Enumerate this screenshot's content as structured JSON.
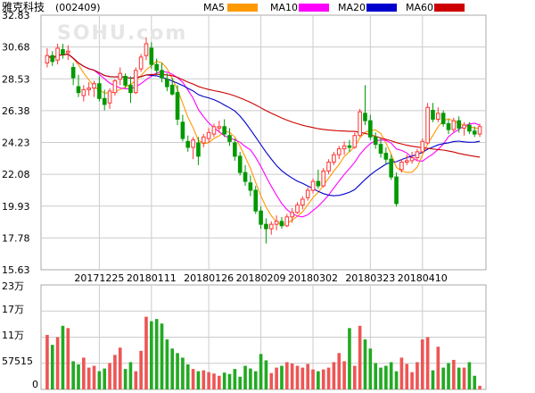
{
  "stock": {
    "name": "雅克科技",
    "code": "(002409)"
  },
  "watermark": "SOHU.com",
  "ma_legend": [
    {
      "label": "MA5",
      "color": "#ff9900"
    },
    {
      "label": "MA10",
      "color": "#ff00ff"
    },
    {
      "label": "MA20",
      "color": "#0000cc"
    },
    {
      "label": "MA60",
      "color": "#cc0000"
    }
  ],
  "colors": {
    "up": "#ff3333",
    "down": "#009900",
    "upVolume": "#ee5555",
    "downVolume": "#22aa22",
    "grid": "#cccccc",
    "axisText": "#000000"
  },
  "chart_data": {
    "type": "candlestick",
    "price_axis": {
      "ticks": [
        "32.83",
        "30.68",
        "28.53",
        "26.38",
        "24.23",
        "22.08",
        "19.93",
        "17.78",
        "15.63"
      ],
      "min": 15.63,
      "max": 32.83
    },
    "date_labels": [
      "20171225",
      "20180111",
      "20180126",
      "20180209",
      "20180302",
      "20180323",
      "20180410"
    ],
    "volume_axis": {
      "ticks": [
        "23万",
        "17万",
        "11万",
        "57515",
        "0"
      ],
      "max": 230000
    },
    "candles": [
      [
        29.6,
        30.6,
        29.3,
        30.1
      ],
      [
        30.1,
        30.4,
        29.4,
        29.7
      ],
      [
        29.8,
        30.9,
        29.5,
        30.6
      ],
      [
        30.5,
        30.9,
        29.9,
        30.2
      ],
      [
        30.3,
        30.8,
        29.8,
        30.4
      ],
      [
        29.3,
        29.6,
        28.1,
        28.6
      ],
      [
        28.0,
        28.8,
        27.3,
        27.6
      ],
      [
        27.4,
        28.1,
        27.0,
        27.8
      ],
      [
        27.8,
        28.3,
        27.4,
        27.9
      ],
      [
        27.9,
        28.4,
        27.3,
        28.2
      ],
      [
        28.2,
        28.7,
        27.0,
        27.2
      ],
      [
        27.2,
        27.8,
        26.4,
        26.8
      ],
      [
        26.9,
        27.9,
        26.5,
        27.7
      ],
      [
        27.6,
        28.5,
        27.4,
        28.4
      ],
      [
        28.5,
        29.3,
        28.1,
        28.9
      ],
      [
        28.7,
        28.9,
        27.9,
        28.1
      ],
      [
        28.1,
        28.7,
        26.9,
        27.6
      ],
      [
        27.6,
        29.3,
        27.5,
        29.1
      ],
      [
        29.2,
        30.2,
        29.0,
        30.0
      ],
      [
        30.1,
        31.3,
        29.8,
        30.9
      ],
      [
        30.6,
        31.0,
        29.2,
        29.5
      ],
      [
        29.5,
        29.9,
        28.8,
        29.1
      ],
      [
        29.1,
        29.6,
        28.3,
        28.6
      ],
      [
        28.5,
        28.9,
        27.7,
        28.0
      ],
      [
        28.1,
        28.6,
        27.4,
        27.5
      ],
      [
        27.6,
        28.1,
        25.4,
        25.8
      ],
      [
        25.6,
        26.1,
        24.3,
        24.5
      ],
      [
        24.3,
        24.7,
        23.6,
        23.9
      ],
      [
        23.9,
        24.6,
        23.1,
        24.4
      ],
      [
        24.2,
        24.6,
        22.7,
        23.3
      ],
      [
        24.2,
        24.8,
        23.9,
        24.6
      ],
      [
        24.5,
        25.2,
        24.2,
        24.9
      ],
      [
        24.8,
        25.5,
        24.6,
        25.3
      ],
      [
        25.2,
        25.7,
        24.9,
        25.3
      ],
      [
        25.3,
        25.8,
        24.6,
        24.8
      ],
      [
        24.7,
        25.2,
        24.0,
        24.3
      ],
      [
        24.2,
        24.5,
        23.0,
        23.3
      ],
      [
        23.3,
        23.6,
        22.0,
        22.2
      ],
      [
        22.2,
        22.7,
        21.3,
        21.6
      ],
      [
        21.5,
        22.0,
        20.6,
        21.0
      ],
      [
        21.0,
        21.3,
        19.4,
        19.6
      ],
      [
        19.6,
        19.9,
        18.4,
        18.7
      ],
      [
        18.7,
        19.1,
        17.4,
        18.4
      ],
      [
        18.4,
        18.9,
        18.0,
        18.7
      ],
      [
        18.7,
        19.3,
        18.3,
        18.9
      ],
      [
        18.9,
        19.2,
        18.4,
        18.6
      ],
      [
        18.6,
        19.4,
        18.5,
        19.2
      ],
      [
        19.2,
        19.8,
        18.8,
        19.5
      ],
      [
        19.5,
        20.2,
        19.4,
        20.0
      ],
      [
        20.0,
        20.6,
        19.7,
        20.4
      ],
      [
        20.5,
        21.2,
        20.3,
        21.0
      ],
      [
        21.0,
        21.8,
        20.8,
        21.6
      ],
      [
        21.6,
        22.4,
        21.1,
        21.3
      ],
      [
        21.3,
        22.5,
        21.2,
        22.3
      ],
      [
        22.3,
        23.1,
        22.1,
        22.9
      ],
      [
        22.9,
        23.6,
        22.7,
        23.4
      ],
      [
        23.4,
        24.0,
        23.1,
        23.8
      ],
      [
        23.8,
        24.3,
        23.4,
        24.0
      ],
      [
        24.0,
        24.4,
        23.6,
        23.9
      ],
      [
        23.9,
        24.9,
        23.8,
        24.7
      ],
      [
        24.7,
        26.5,
        24.6,
        26.3
      ],
      [
        26.2,
        28.1,
        25.4,
        25.7
      ],
      [
        25.7,
        26.1,
        24.4,
        24.6
      ],
      [
        24.6,
        24.9,
        23.8,
        24.1
      ],
      [
        24.1,
        24.5,
        23.2,
        23.5
      ],
      [
        23.5,
        23.9,
        22.8,
        23.1
      ],
      [
        23.1,
        23.4,
        21.7,
        21.9
      ],
      [
        21.9,
        22.2,
        19.9,
        20.1
      ],
      [
        22.4,
        23.1,
        22.2,
        22.9
      ],
      [
        22.9,
        23.4,
        22.7,
        23.0
      ],
      [
        23.0,
        23.6,
        22.8,
        23.2
      ],
      [
        23.2,
        23.8,
        23.0,
        23.6
      ],
      [
        23.6,
        24.5,
        23.5,
        24.3
      ],
      [
        24.2,
        26.9,
        24.1,
        26.6
      ],
      [
        26.4,
        26.9,
        25.6,
        25.8
      ],
      [
        25.8,
        26.6,
        25.6,
        26.2
      ],
      [
        26.2,
        26.4,
        25.3,
        25.5
      ],
      [
        25.5,
        25.8,
        24.8,
        25.1
      ],
      [
        25.1,
        25.9,
        24.9,
        25.7
      ],
      [
        25.7,
        26.0,
        24.9,
        25.2
      ],
      [
        25.2,
        25.6,
        24.7,
        25.4
      ],
      [
        25.4,
        25.6,
        24.8,
        25.0
      ],
      [
        25.0,
        25.3,
        24.6,
        24.8
      ],
      [
        24.8,
        25.5,
        24.6,
        25.3
      ]
    ],
    "volume": [
      120000,
      98000,
      115000,
      140000,
      135000,
      62000,
      55000,
      70000,
      48000,
      52000,
      40000,
      46000,
      58000,
      76000,
      92000,
      45000,
      60000,
      40000,
      85000,
      160000,
      150000,
      155000,
      145000,
      110000,
      90000,
      80000,
      70000,
      55000,
      45000,
      40000,
      42000,
      38000,
      35000,
      30000,
      37000,
      34000,
      45000,
      28000,
      52000,
      46000,
      40000,
      78000,
      64000,
      36000,
      48000,
      52000,
      60000,
      57000,
      52000,
      48000,
      56000,
      44000,
      40000,
      44000,
      48000,
      60000,
      80000,
      62000,
      135000,
      52000,
      140000,
      110000,
      90000,
      58000,
      48000,
      52000,
      60000,
      40000,
      70000,
      56000,
      38000,
      60000,
      110000,
      115000,
      42000,
      94000,
      48000,
      58000,
      65000,
      48000,
      48000,
      60000,
      30000,
      8000
    ]
  }
}
